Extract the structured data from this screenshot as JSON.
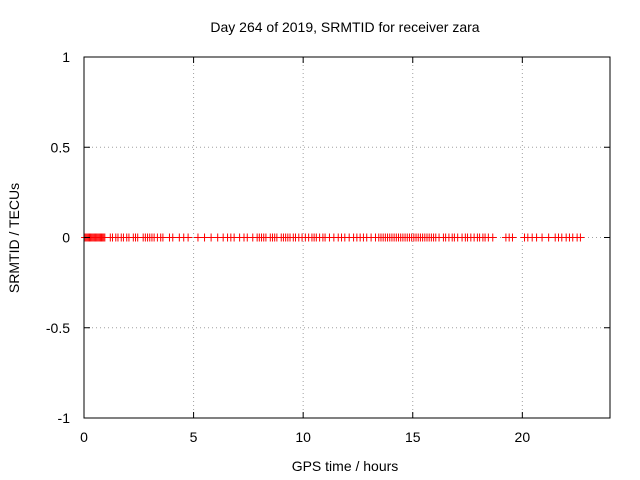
{
  "chart_data": {
    "type": "scatter",
    "title": "Day 264 of 2019, SRMTID for receiver zara",
    "xlabel": "GPS time / hours",
    "ylabel": "SRMTID / TECUs",
    "xlim": [
      0,
      24
    ],
    "ylim": [
      -1,
      1
    ],
    "xticks": [
      0,
      5,
      10,
      15,
      20
    ],
    "xtick_labels": [
      "0",
      "5",
      "10",
      "15",
      "20"
    ],
    "yticks": [
      1,
      0.5,
      0,
      -0.5,
      -1
    ],
    "ytick_labels": [
      "1",
      "0.5",
      "0",
      "-0.5",
      "-1"
    ],
    "grid": true,
    "marker": "+",
    "colors": {
      "series": "#ff0000",
      "grid": "#a0a0a0",
      "axes": "#000000"
    },
    "series": [
      {
        "name": "SRMTID",
        "x": [
          0.05,
          0.1,
          0.15,
          0.2,
          0.25,
          0.3,
          0.35,
          0.4,
          0.45,
          0.5,
          0.55,
          0.6,
          0.65,
          0.7,
          0.75,
          0.8,
          0.85,
          0.9,
          0.95,
          1.2,
          1.3,
          1.45,
          1.55,
          1.7,
          1.8,
          1.95,
          2.05,
          2.25,
          2.35,
          2.45,
          2.7,
          2.8,
          2.9,
          3.0,
          3.1,
          3.2,
          3.35,
          3.5,
          3.6,
          3.9,
          4.05,
          4.35,
          4.55,
          4.75,
          5.2,
          5.5,
          5.8,
          6.1,
          6.35,
          6.55,
          6.7,
          6.85,
          7.1,
          7.3,
          7.45,
          7.7,
          7.9,
          8.0,
          8.1,
          8.2,
          8.3,
          8.5,
          8.6,
          8.7,
          8.8,
          9.0,
          9.1,
          9.2,
          9.3,
          9.4,
          9.55,
          9.65,
          9.8,
          9.95,
          10.1,
          10.25,
          10.4,
          10.5,
          10.6,
          10.75,
          10.9,
          11.0,
          11.2,
          11.4,
          11.6,
          11.75,
          11.9,
          12.1,
          12.3,
          12.45,
          12.6,
          12.75,
          12.9,
          13.1,
          13.3,
          13.45,
          13.55,
          13.65,
          13.75,
          13.85,
          13.95,
          14.05,
          14.15,
          14.25,
          14.35,
          14.45,
          14.55,
          14.65,
          14.75,
          14.85,
          14.95,
          15.05,
          15.15,
          15.25,
          15.35,
          15.45,
          15.55,
          15.65,
          15.75,
          15.85,
          15.95,
          16.05,
          16.2,
          16.4,
          16.5,
          16.65,
          16.8,
          16.9,
          17.05,
          17.25,
          17.4,
          17.5,
          17.65,
          17.8,
          17.95,
          18.05,
          18.2,
          18.3,
          18.45,
          18.65,
          19.25,
          19.4,
          19.55,
          20.1,
          20.25,
          20.45,
          20.65,
          20.9,
          21.2,
          21.5,
          21.65,
          21.8,
          22.0,
          22.15,
          22.3,
          22.5,
          22.65
        ],
        "y": 0
      }
    ]
  }
}
